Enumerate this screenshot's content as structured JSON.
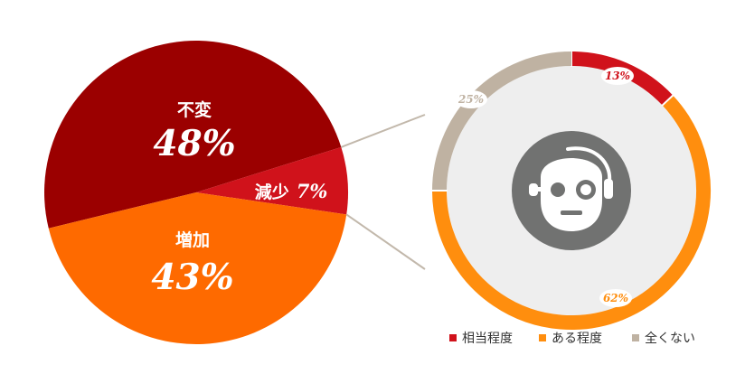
{
  "colors": {
    "dark_red": "#9b0000",
    "red": "#d0121b",
    "orange": "#fe6a00",
    "ring_orange": "#ff8e0e",
    "ring_gray": "#bfb2a2",
    "ring_inner_bg": "#eeeeee",
    "robot_bg": "#717271",
    "connector": "#c2b8ab"
  },
  "chart_data": [
    {
      "type": "pie",
      "slices": [
        {
          "label": "不変",
          "value": 48,
          "display": "48%",
          "color": "#9b0000"
        },
        {
          "label": "減少",
          "value": 7,
          "display": "7%",
          "color": "#d0121b"
        },
        {
          "label": "増加",
          "value": 43,
          "display": "43%",
          "color": "#fe6a00"
        }
      ]
    },
    {
      "type": "pie",
      "style": "donut",
      "center_icon": "robot-icon",
      "slices": [
        {
          "label": "相当程度",
          "value": 13,
          "display": "13%",
          "color": "#d0121b"
        },
        {
          "label": "ある程度",
          "value": 62,
          "display": "62%",
          "color": "#ff8e0e"
        },
        {
          "label": "全くない",
          "value": 25,
          "display": "25%",
          "color": "#bfb2a2"
        }
      ],
      "legend": [
        "相当程度",
        "ある程度",
        "全くない"
      ],
      "legend_position": "bottom"
    }
  ]
}
